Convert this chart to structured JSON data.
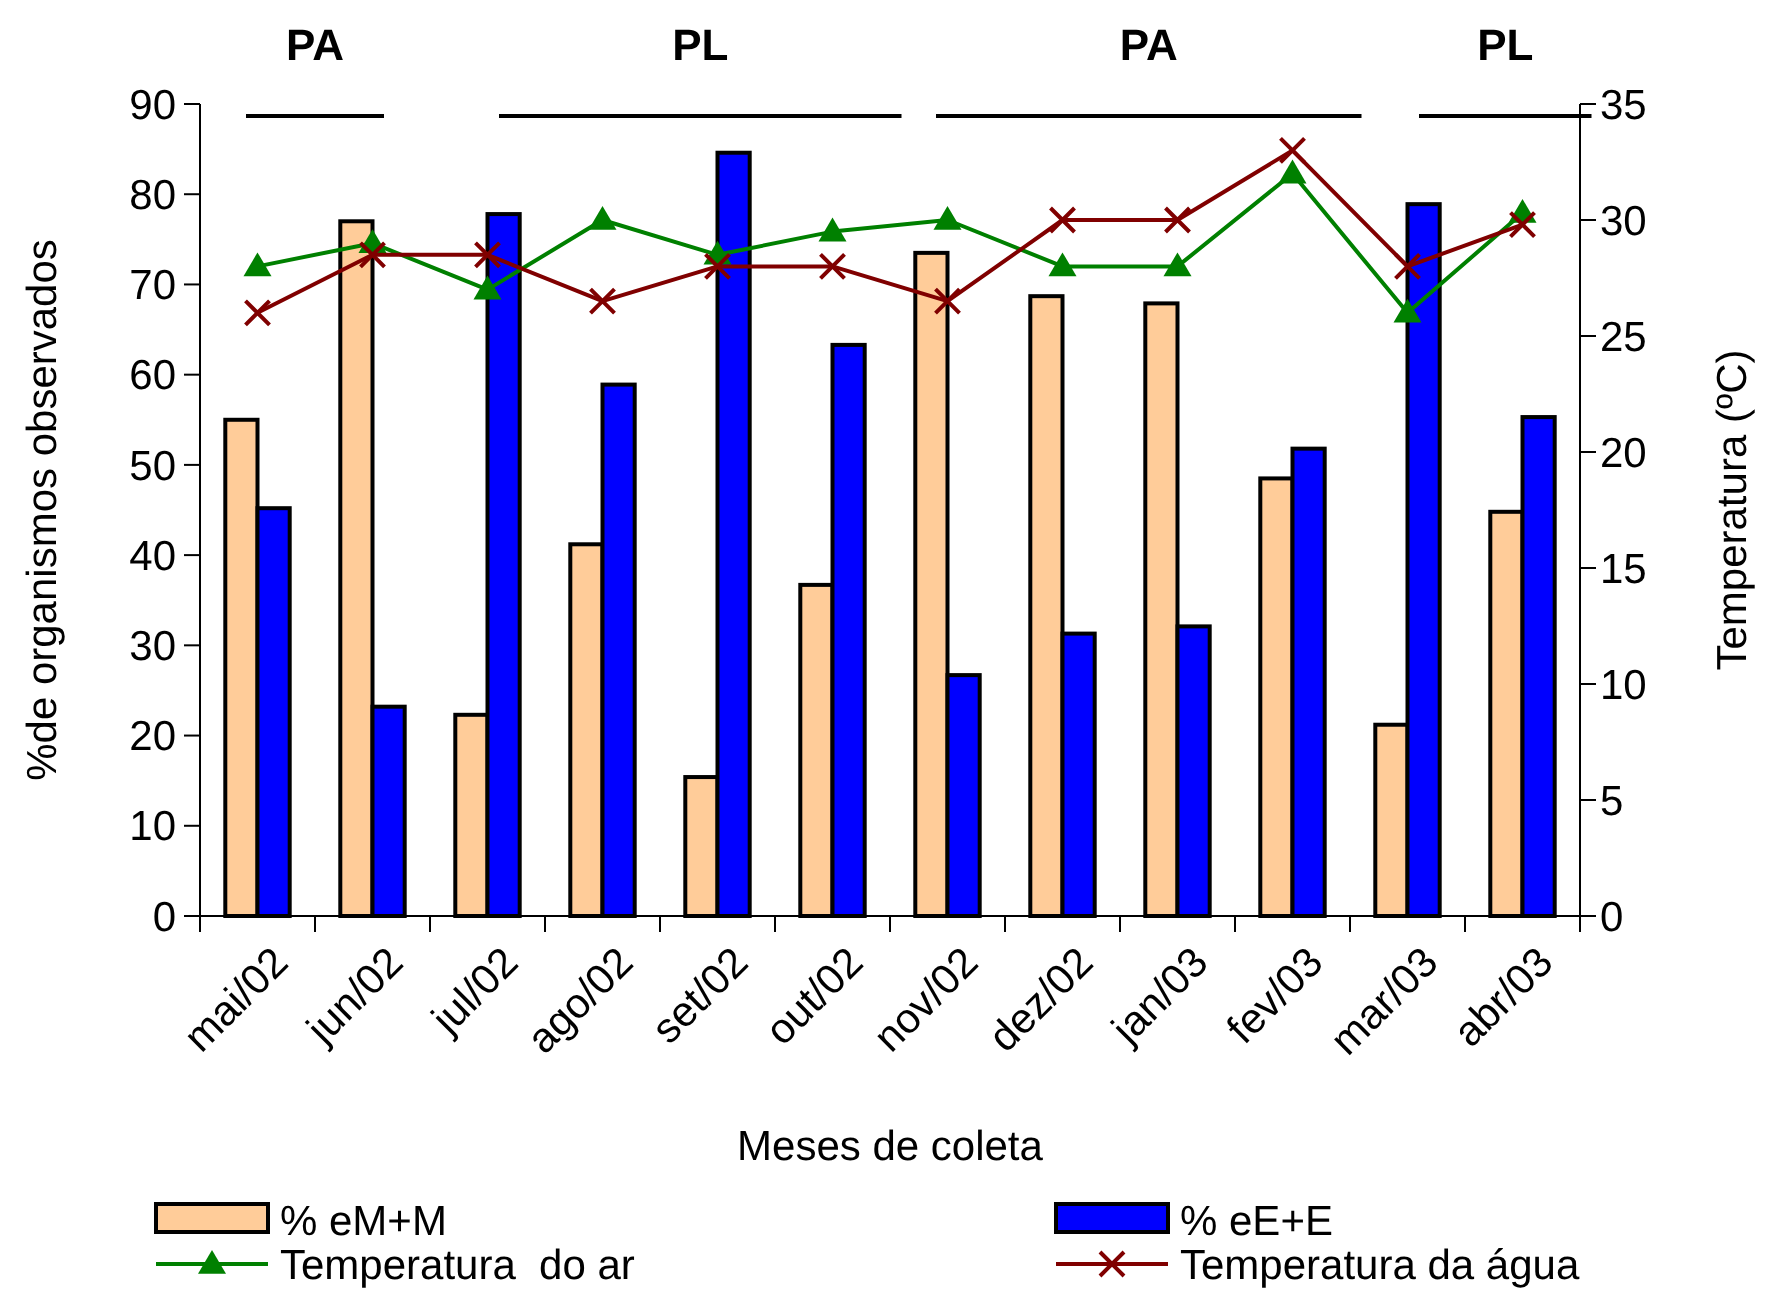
{
  "chart_data": {
    "type": "bar",
    "xlabel": "Meses de coleta",
    "ylabel": "%de organismos observados",
    "y2label": "Temperatura (ºC)",
    "categories": [
      "mai/02",
      "jun/02",
      "jul/02",
      "ago/02",
      "set/02",
      "out/02",
      "nov/02",
      "dez/02",
      "jan/03",
      "fev/03",
      "mar/03",
      "abr/03"
    ],
    "series": [
      {
        "name": "% eM+M",
        "color": "#ffcc99",
        "values": [
          55,
          77,
          22.3,
          41.2,
          15.4,
          36.7,
          73.5,
          68.7,
          67.9,
          48.5,
          21.2,
          44.8
        ]
      },
      {
        "name": "% eE+E",
        "color": "#0000ff",
        "values": [
          45.2,
          23.2,
          77.8,
          58.9,
          84.6,
          63.3,
          26.7,
          31.3,
          32.1,
          51.8,
          78.9,
          55.3
        ]
      },
      {
        "name": "Temperatura  do ar",
        "type": "line",
        "axis": "y2",
        "color": "#008000",
        "marker": "triangle",
        "values": [
          28,
          29,
          27,
          30,
          28.5,
          29.5,
          30,
          28,
          28,
          32,
          26,
          30.3
        ]
      },
      {
        "name": "Temperatura da água",
        "type": "line",
        "axis": "y2",
        "color": "#800000",
        "marker": "cross",
        "values": [
          26,
          28.5,
          28.5,
          26.5,
          28,
          28,
          26.5,
          30,
          30,
          33,
          28,
          29.8
        ]
      }
    ],
    "ylim": [
      0,
      90
    ],
    "yticks": [
      0,
      10,
      20,
      30,
      40,
      50,
      60,
      70,
      80,
      90
    ],
    "y2lim": [
      0,
      35
    ],
    "y2ticks": [
      0,
      5,
      10,
      15,
      20,
      25,
      30,
      35
    ],
    "annotations": [
      "PA",
      "PL",
      "PA",
      "PL"
    ],
    "legend": "bottom",
    "grid": false
  }
}
